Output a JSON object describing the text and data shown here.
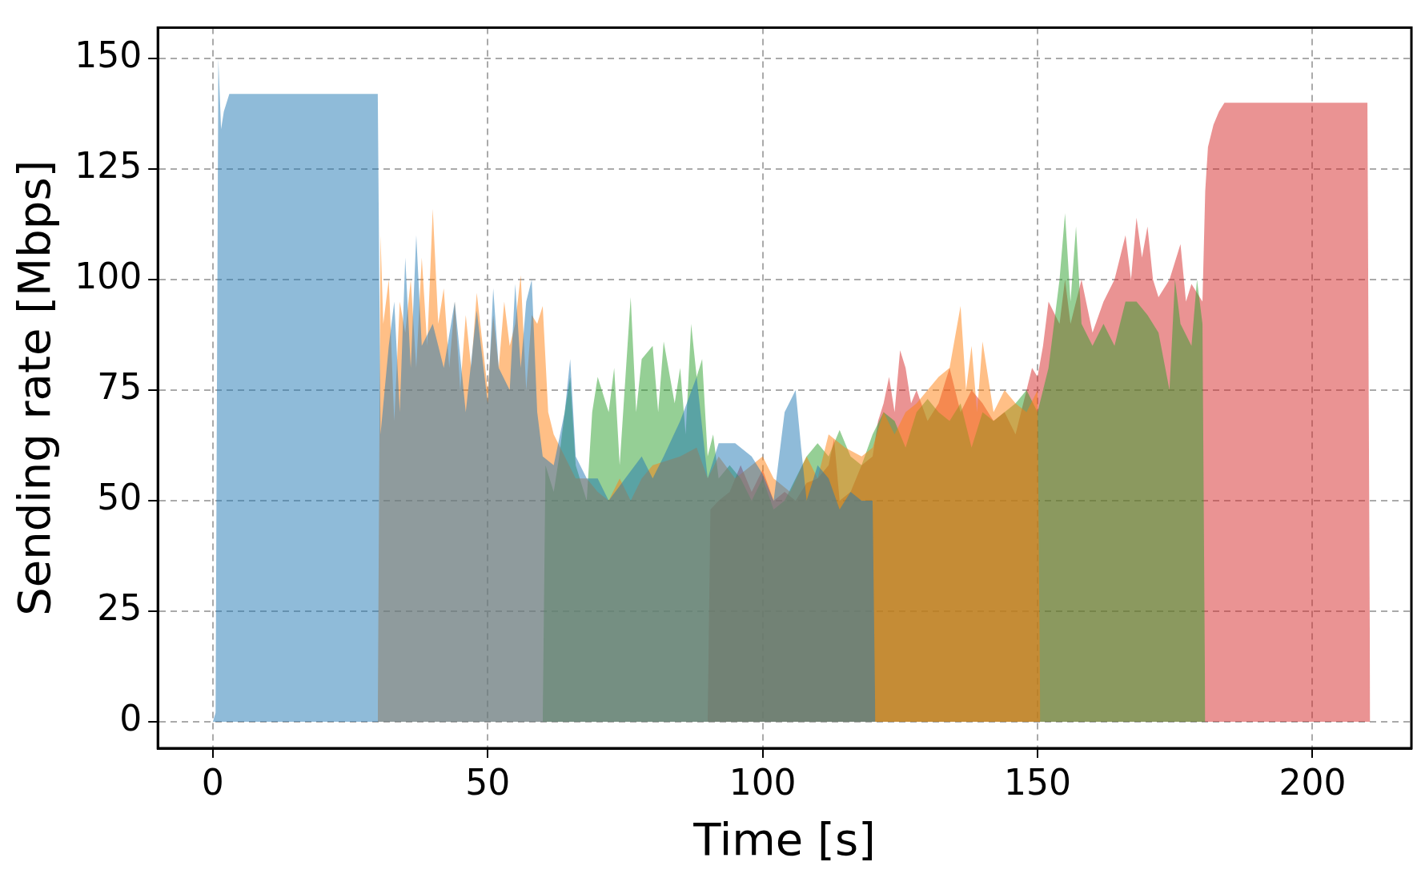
{
  "chart_data": {
    "type": "area",
    "xlabel": "Time [s]",
    "ylabel": "Sending rate [Mbps]",
    "xlim": [
      -10,
      218
    ],
    "ylim": [
      -6,
      157
    ],
    "xticks": [
      0,
      50,
      100,
      150,
      200
    ],
    "yticks": [
      0,
      25,
      50,
      75,
      100,
      125,
      150
    ],
    "grid": true,
    "series": [
      {
        "color": "#1f77b4",
        "x": [
          0,
          0.5,
          1,
          1.5,
          2,
          3,
          30,
          30.5,
          32,
          33,
          34,
          35,
          36,
          37,
          38,
          40,
          42,
          44,
          46,
          48,
          50,
          51,
          52,
          54,
          55,
          56,
          57,
          58,
          59,
          60,
          62,
          64,
          65,
          66,
          68,
          70,
          72,
          75,
          78,
          80,
          82,
          85,
          88,
          90,
          92,
          95,
          98,
          100,
          102,
          104,
          106,
          107,
          108,
          110,
          112,
          114,
          116,
          118,
          120,
          120.5
        ],
        "values": [
          0,
          2,
          150,
          134,
          138,
          142,
          142,
          65,
          85,
          95,
          70,
          105,
          80,
          110,
          85,
          90,
          80,
          95,
          70,
          93,
          72,
          98,
          80,
          75,
          99,
          80,
          95,
          100,
          70,
          60,
          58,
          70,
          82,
          60,
          55,
          55,
          50,
          55,
          60,
          55,
          60,
          68,
          78,
          55,
          63,
          63,
          60,
          56,
          50,
          70,
          75,
          62,
          50,
          58,
          55,
          48,
          52,
          50,
          50,
          0
        ]
      },
      {
        "color": "#ff7f0e",
        "x": [
          30,
          30.5,
          31,
          32,
          33,
          34,
          35,
          36,
          37,
          38,
          39,
          40,
          41,
          42,
          43,
          44,
          45,
          46,
          47,
          48,
          50,
          51,
          52,
          53,
          54,
          55,
          56,
          57,
          58,
          59,
          60,
          61,
          62,
          64,
          66,
          68,
          70,
          72,
          74,
          76,
          78,
          80,
          85,
          88,
          90,
          92,
          95,
          98,
          100,
          102,
          105,
          108,
          110,
          112,
          115,
          118,
          120,
          122,
          124,
          126,
          128,
          130,
          132,
          134,
          136,
          137,
          138,
          139,
          140,
          142,
          144,
          146,
          148,
          150,
          150.5
        ],
        "values": [
          0,
          110,
          90,
          100,
          68,
          95,
          88,
          100,
          80,
          105,
          85,
          116,
          90,
          98,
          80,
          95,
          75,
          92,
          80,
          97,
          75,
          92,
          80,
          95,
          85,
          90,
          101,
          75,
          92,
          90,
          94,
          70,
          65,
          60,
          55,
          55,
          52,
          50,
          55,
          50,
          55,
          58,
          60,
          62,
          55,
          60,
          55,
          58,
          60,
          55,
          52,
          60,
          55,
          65,
          62,
          60,
          62,
          70,
          65,
          70,
          72,
          75,
          78,
          80,
          94,
          75,
          85,
          70,
          86,
          70,
          75,
          72,
          70,
          75,
          0
        ]
      },
      {
        "color": "#2ca02c",
        "x": [
          60,
          60.5,
          62,
          63,
          64,
          65,
          66,
          68,
          69,
          70,
          72,
          73,
          74,
          76,
          77,
          78,
          80,
          81,
          82,
          84,
          85,
          86,
          87,
          88,
          89,
          90,
          91,
          92,
          94,
          96,
          98,
          100,
          102,
          104,
          106,
          108,
          110,
          112,
          114,
          116,
          118,
          120,
          122,
          124,
          126,
          128,
          130,
          132,
          134,
          136,
          138,
          140,
          142,
          144,
          146,
          148,
          150,
          152,
          153,
          154,
          155,
          156,
          157,
          158,
          160,
          162,
          164,
          166,
          168,
          170,
          172,
          174,
          175,
          176,
          178,
          179,
          180,
          180.5
        ],
        "values": [
          0,
          58,
          52,
          60,
          70,
          78,
          58,
          50,
          70,
          78,
          70,
          80,
          58,
          96,
          70,
          82,
          85,
          70,
          86,
          72,
          80,
          65,
          90,
          78,
          82,
          60,
          65,
          55,
          58,
          55,
          50,
          55,
          48,
          50,
          55,
          60,
          63,
          60,
          66,
          60,
          58,
          65,
          70,
          68,
          62,
          70,
          73,
          70,
          68,
          72,
          62,
          70,
          68,
          70,
          72,
          75,
          70,
          80,
          90,
          100,
          115,
          95,
          112,
          90,
          85,
          90,
          85,
          95,
          95,
          92,
          88,
          75,
          100,
          90,
          85,
          100,
          90,
          0
        ]
      },
      {
        "color": "#d62728",
        "x": [
          90,
          90.5,
          92,
          94,
          96,
          98,
          100,
          102,
          104,
          106,
          108,
          110,
          112,
          113,
          114,
          116,
          118,
          120,
          121,
          122,
          123,
          124,
          125,
          126,
          127,
          128,
          130,
          132,
          134,
          136,
          138,
          140,
          142,
          144,
          146,
          148,
          149,
          150,
          151,
          152,
          154,
          155,
          156,
          158,
          160,
          162,
          164,
          166,
          167,
          168,
          169,
          170,
          171,
          172,
          174,
          176,
          177,
          178,
          180,
          180.5,
          181,
          182,
          183,
          184,
          210,
          210.5
        ],
        "values": [
          0,
          48,
          50,
          52,
          58,
          52,
          57,
          50,
          52,
          50,
          54,
          55,
          58,
          64,
          50,
          52,
          58,
          60,
          68,
          72,
          78,
          70,
          84,
          80,
          72,
          75,
          68,
          72,
          80,
          70,
          75,
          72,
          68,
          70,
          65,
          75,
          80,
          78,
          85,
          95,
          90,
          100,
          90,
          100,
          88,
          95,
          100,
          110,
          100,
          114,
          105,
          112,
          100,
          96,
          100,
          108,
          95,
          99,
          95,
          120,
          130,
          135,
          138,
          140,
          140,
          0
        ]
      }
    ]
  }
}
